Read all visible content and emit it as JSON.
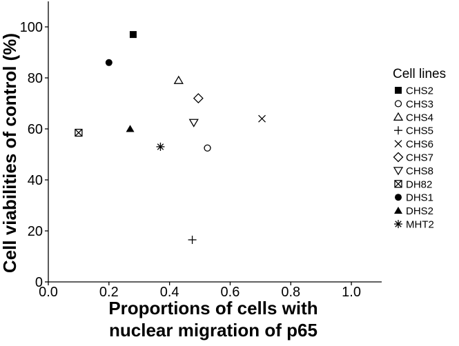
{
  "chart_data": {
    "type": "scatter",
    "xlabel_lines": [
      "Proportions of cells with",
      "nuclear migration of p65"
    ],
    "ylabel": "Cell viabilities of control (%)",
    "xlim": [
      0.0,
      1.1
    ],
    "ylim": [
      0,
      110
    ],
    "x_ticks": [
      0.0,
      0.2,
      0.4,
      0.6,
      0.8,
      1.0
    ],
    "x_tick_labels": [
      "0.0",
      "0.2",
      "0.4",
      "0.6",
      "0.8",
      "1.0"
    ],
    "y_ticks": [
      0,
      20,
      40,
      60,
      80,
      100
    ],
    "y_tick_labels": [
      "0",
      "20",
      "40",
      "60",
      "80",
      "100"
    ],
    "grid": false,
    "legend_title": "Cell lines",
    "legend_position": "right",
    "series": [
      {
        "name": "CHS2",
        "marker": "filled-square",
        "x": 0.28,
        "y": 97
      },
      {
        "name": "CHS3",
        "marker": "open-circle",
        "x": 0.525,
        "y": 52.5
      },
      {
        "name": "CHS4",
        "marker": "open-triangle-up",
        "x": 0.43,
        "y": 79
      },
      {
        "name": "CHS5",
        "marker": "plus",
        "x": 0.475,
        "y": 16.5
      },
      {
        "name": "CHS6",
        "marker": "cross",
        "x": 0.705,
        "y": 64
      },
      {
        "name": "CHS7",
        "marker": "open-diamond",
        "x": 0.495,
        "y": 72
      },
      {
        "name": "CHS8",
        "marker": "open-triangle-down",
        "x": 0.48,
        "y": 62.5
      },
      {
        "name": "DH82",
        "marker": "square-cross",
        "x": 0.1,
        "y": 58.5
      },
      {
        "name": "DHS1",
        "marker": "filled-circle",
        "x": 0.2,
        "y": 86
      },
      {
        "name": "DHS2",
        "marker": "filled-triangle-up",
        "x": 0.27,
        "y": 60
      },
      {
        "name": "MHT2",
        "marker": "asterisk",
        "x": 0.37,
        "y": 53
      }
    ]
  }
}
